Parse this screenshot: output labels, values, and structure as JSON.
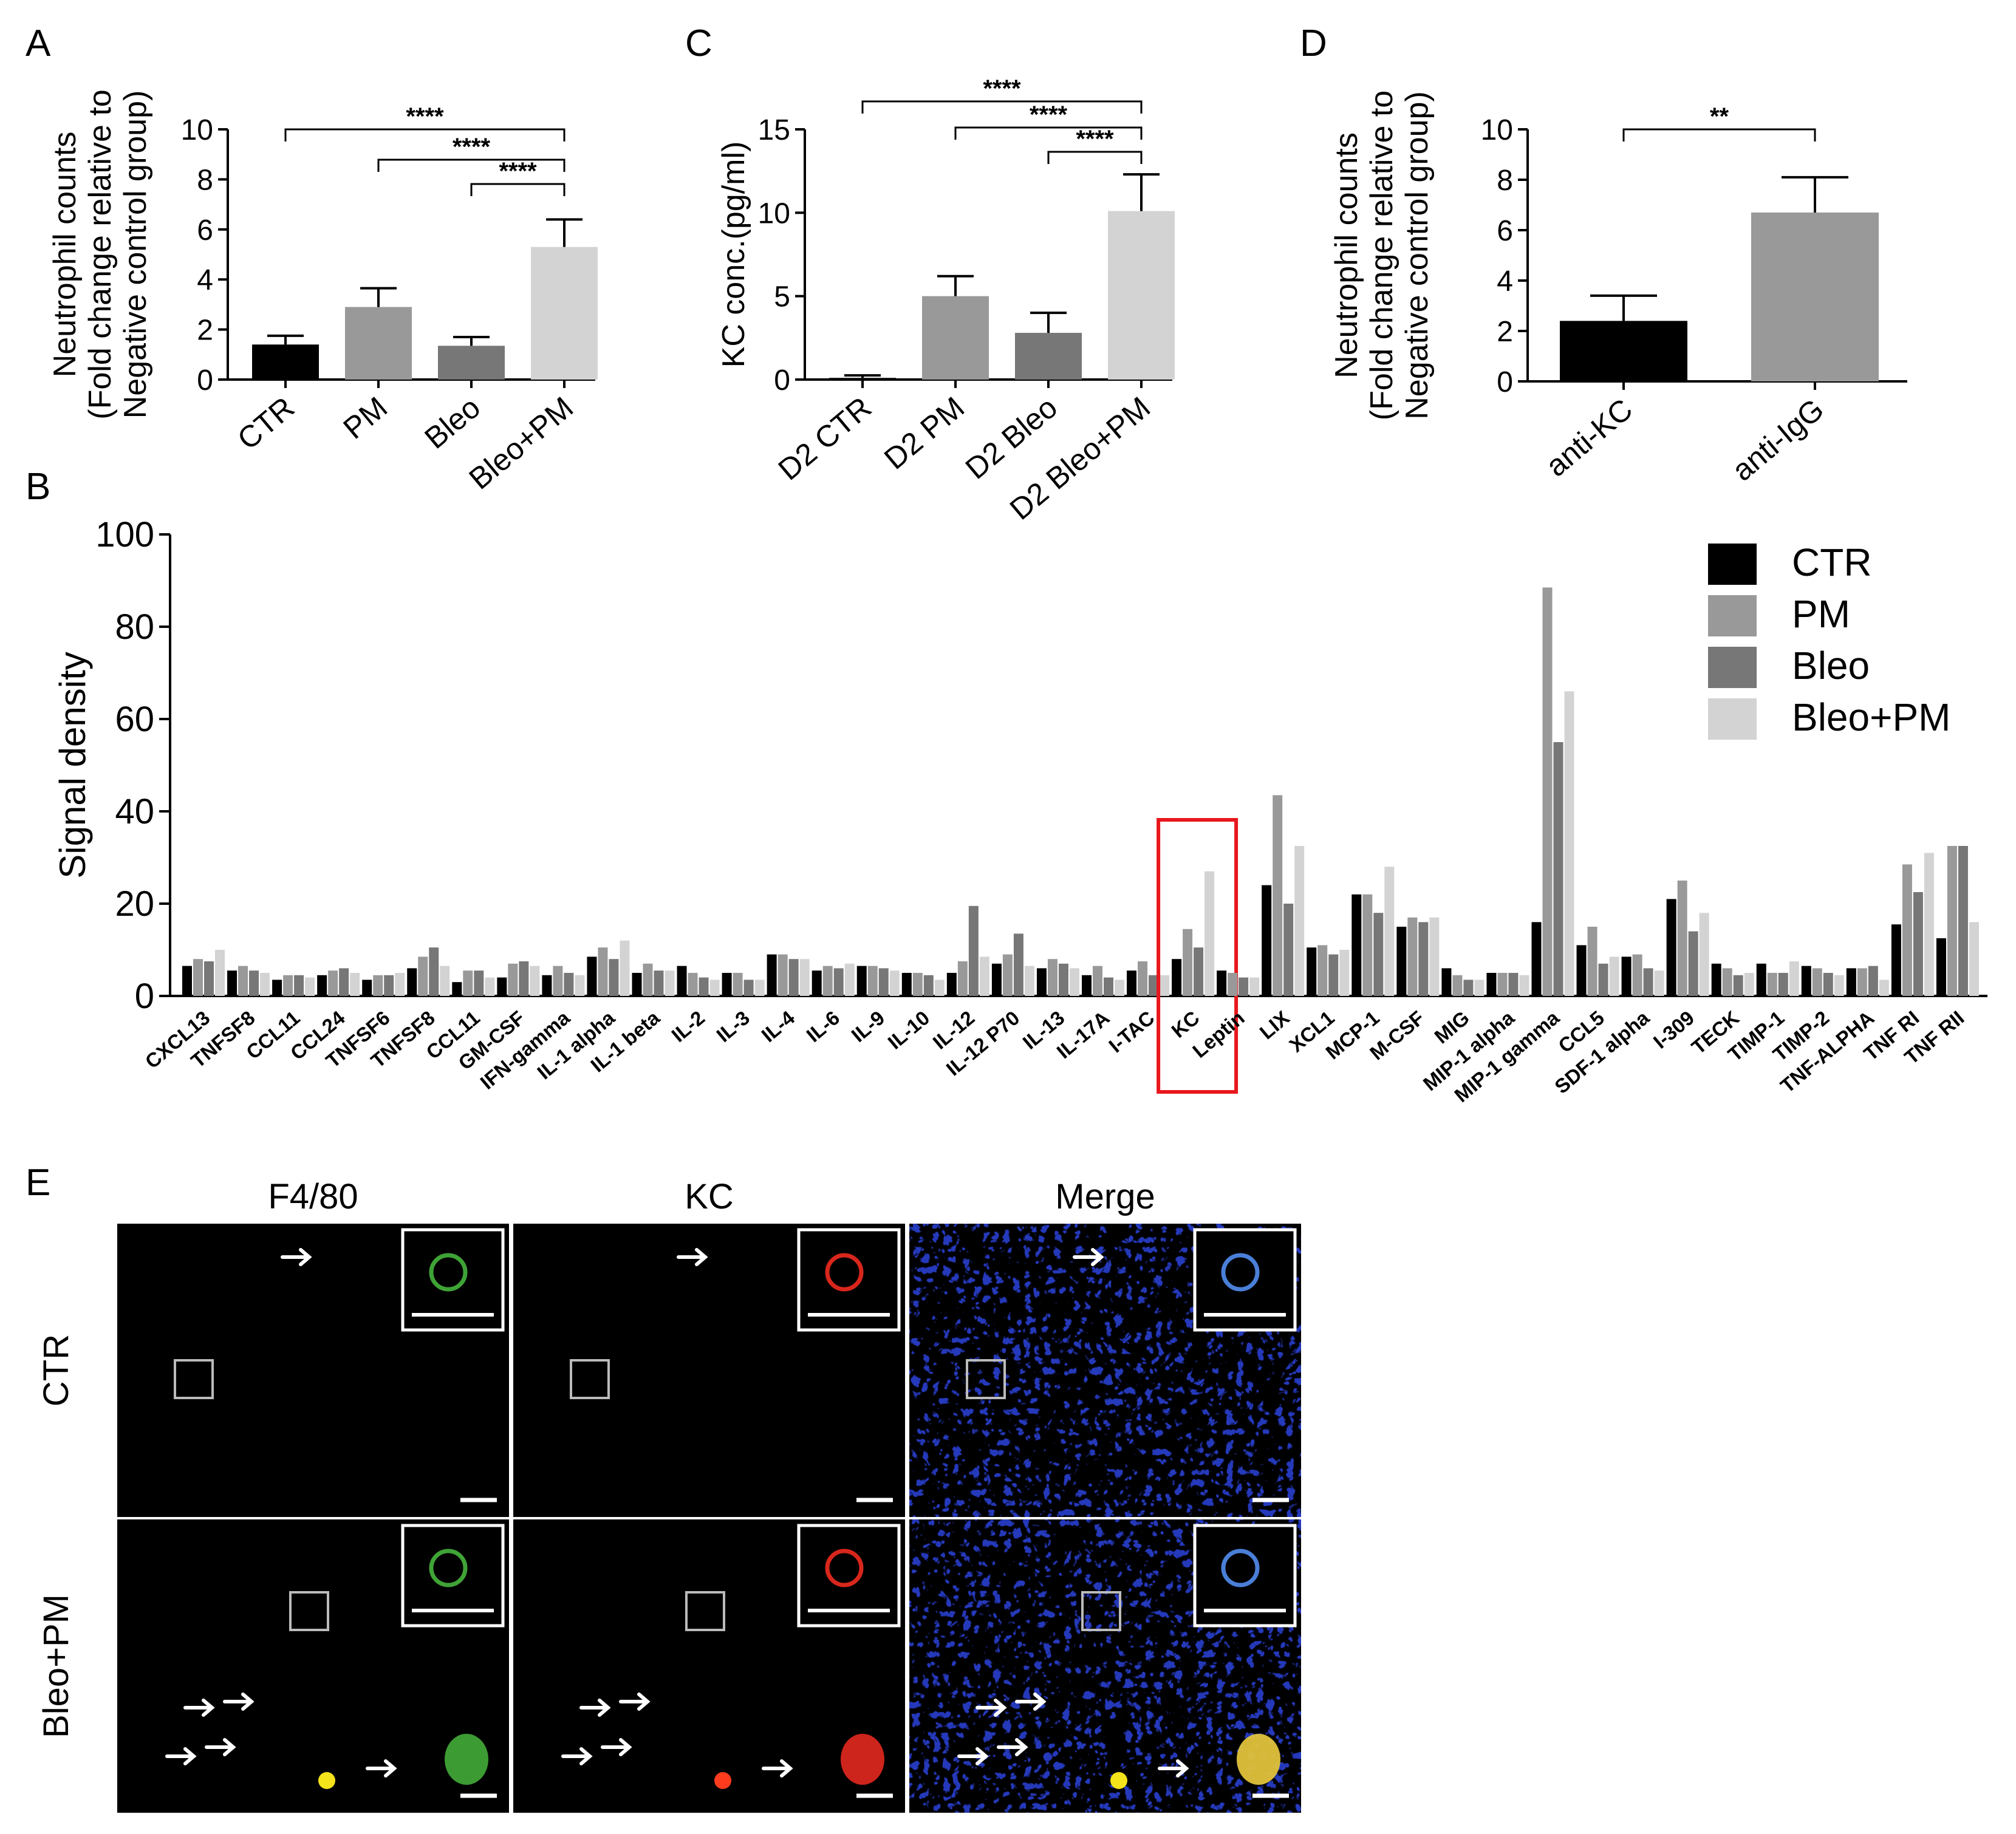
{
  "figure": {
    "panel_letters": [
      "A",
      "C",
      "D",
      "B",
      "E"
    ]
  },
  "chart_data": [
    {
      "panel": "A",
      "type": "bar",
      "ylabel": [
        "Neutrophil counts",
        "(Fold change relative to",
        "Negative control group)"
      ],
      "categories": [
        "CTR",
        "PM",
        "Bleo",
        "Bleo+PM"
      ],
      "values": [
        1.4,
        2.9,
        1.35,
        5.3
      ],
      "errors": [
        0.35,
        0.75,
        0.35,
        1.1
      ],
      "colors": [
        "#000000",
        "#999999",
        "#777777",
        "#d3d3d3"
      ],
      "ylim": [
        0,
        10
      ],
      "yticks": [
        0,
        2,
        4,
        6,
        8,
        10
      ],
      "significance": [
        {
          "from": 0,
          "to": 3,
          "label": "****"
        },
        {
          "from": 1,
          "to": 3,
          "label": "****"
        },
        {
          "from": 2,
          "to": 3,
          "label": "****"
        }
      ]
    },
    {
      "panel": "C",
      "type": "bar",
      "ylabel": [
        "KC conc.(pg/ml)"
      ],
      "categories": [
        "D2 CTR",
        "D2 PM",
        "D2 Bleo",
        "D2 Bleo+PM"
      ],
      "values": [
        0.1,
        5.0,
        2.8,
        10.1
      ],
      "errors": [
        0.15,
        1.2,
        1.2,
        2.2
      ],
      "colors": [
        "#000000",
        "#999999",
        "#777777",
        "#d3d3d3"
      ],
      "ylim": [
        0,
        15
      ],
      "yticks": [
        0,
        5,
        10,
        15
      ],
      "significance": [
        {
          "from": 0,
          "to": 3,
          "label": "****"
        },
        {
          "from": 1,
          "to": 3,
          "label": "****"
        },
        {
          "from": 2,
          "to": 3,
          "label": "****"
        }
      ]
    },
    {
      "panel": "D",
      "type": "bar",
      "ylabel": [
        "Neutrophil counts",
        "(Fold change relative to",
        "Negative control group)"
      ],
      "categories": [
        "anti-KC",
        "anti-IgG"
      ],
      "values": [
        2.4,
        6.7
      ],
      "errors": [
        1.0,
        1.4
      ],
      "colors": [
        "#000000",
        "#999999"
      ],
      "ylim": [
        0,
        10
      ],
      "yticks": [
        0,
        2,
        4,
        6,
        8,
        10
      ],
      "significance": [
        {
          "from": 0,
          "to": 1,
          "label": "**"
        }
      ]
    },
    {
      "panel": "B",
      "type": "bar",
      "ylabel": "Signal density",
      "ylim": [
        0,
        100
      ],
      "yticks": [
        0,
        20,
        40,
        60,
        80,
        100
      ],
      "legend": [
        "CTR",
        "PM",
        "Bleo",
        "Bleo+PM"
      ],
      "colors": [
        "#000000",
        "#999999",
        "#777777",
        "#d3d3d3"
      ],
      "highlight": "KC",
      "categories": [
        "CXCL13",
        "TNFSF8",
        "CCL11",
        "CCL24",
        "TNFSF6",
        "TNFSF8",
        "CCL11",
        "GM-CSF",
        "IFN-gamma",
        "IL-1 alpha",
        "IL-1 beta",
        "IL-2",
        "IL-3",
        "IL-4",
        "IL-6",
        "IL-9",
        "IL-10",
        "IL-12",
        "IL-12 P70",
        "IL-13",
        "IL-17A",
        "I-TAC",
        "KC",
        "Leptin",
        "LIX",
        "XCL1",
        "MCP-1",
        "M-CSF",
        "MIG",
        "MIP-1 alpha",
        "MIP-1 gamma",
        "CCL5",
        "SDF-1 alpha",
        "I-309",
        "TECK",
        "TIMP-1",
        "TIMP-2",
        "TNF-ALPHA",
        "TNF RI",
        "TNF RII"
      ],
      "series": [
        {
          "name": "CTR",
          "values": [
            6.5,
            5.5,
            3.5,
            4.5,
            3.5,
            6,
            3,
            4,
            4.5,
            8.5,
            5,
            6.5,
            5,
            9,
            5.5,
            6.5,
            5,
            5,
            7,
            6,
            4.5,
            5.5,
            8,
            5.5,
            24,
            10.5,
            22,
            15,
            6,
            5,
            16,
            11,
            8.5,
            21,
            7,
            7,
            6.5,
            6,
            15.5,
            12.5
          ]
        },
        {
          "name": "PM",
          "values": [
            8,
            6.5,
            4.5,
            5.5,
            4.5,
            8.5,
            5.5,
            7,
            6.5,
            10.5,
            7,
            5,
            5,
            9,
            6.5,
            6.5,
            5,
            7.5,
            9,
            8,
            6.5,
            7.5,
            14.5,
            5,
            43.5,
            11,
            22,
            17,
            4.5,
            5,
            88.5,
            15,
            9,
            25,
            6,
            5,
            6,
            6,
            28.5,
            32.5
          ]
        },
        {
          "name": "Bleo",
          "values": [
            7.5,
            5.5,
            4.5,
            6,
            4.5,
            10.5,
            5.5,
            7.5,
            5,
            8,
            5.5,
            4,
            3.5,
            8,
            6,
            6,
            4.5,
            19.5,
            13.5,
            7,
            4,
            4.5,
            10.5,
            4,
            20,
            9,
            18,
            16,
            3.5,
            5,
            55,
            7,
            6,
            14,
            4.5,
            5,
            5,
            6.5,
            22.5,
            32.5
          ]
        },
        {
          "name": "Bleo+PM",
          "values": [
            10,
            5,
            4,
            5,
            5,
            6.5,
            4,
            6.5,
            4.5,
            12,
            5.5,
            3.5,
            3.5,
            8,
            7,
            5.5,
            3.5,
            8.5,
            6.5,
            6,
            3.5,
            4.5,
            27,
            4,
            32.5,
            10,
            28,
            17,
            3.5,
            4.5,
            66,
            8.5,
            5.5,
            18,
            5,
            7.5,
            4.5,
            3.5,
            31,
            16
          ]
        }
      ]
    }
  ],
  "microscopy": {
    "columns": [
      "F4/80",
      "KC",
      "Merge"
    ],
    "rows": [
      "CTR",
      "Bleo+PM"
    ]
  }
}
